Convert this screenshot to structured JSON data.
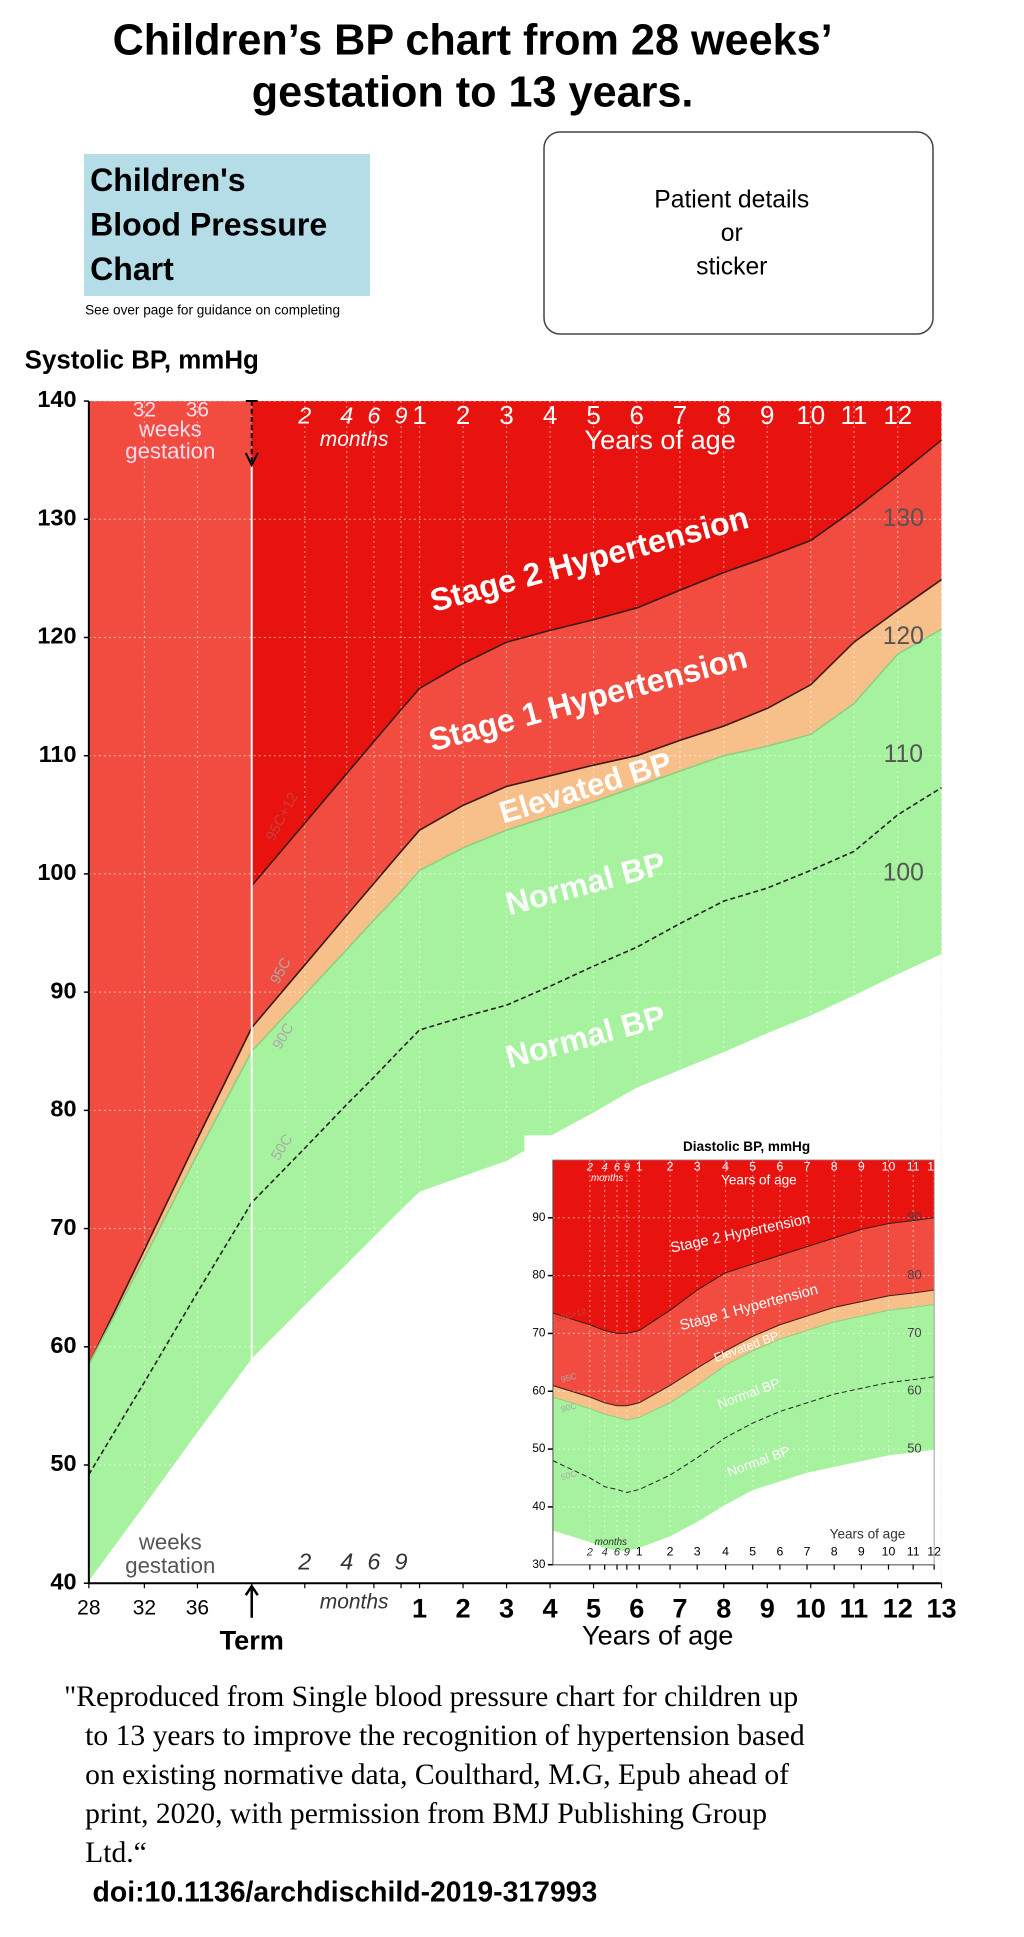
{
  "page": {
    "title_lines": [
      "Children’s BP chart from 28 weeks’",
      "gestation to 13 years."
    ],
    "logo_lines": [
      "Children's",
      "Blood Pressure",
      "Chart"
    ],
    "guidance": "See over page for guidance on completing",
    "patient_lines": [
      "Patient details",
      "or",
      "sticker"
    ],
    "citation_lines": [
      "\"Reproduced from Single blood pressure chart for children up",
      "to 13 years to improve the recognition of hypertension based",
      "on existing normative data, Coulthard, M.G, Epub ahead of",
      "print, 2020, with permission from BMJ Publishing Group",
      "Ltd.“"
    ],
    "doi": "doi:10.1136/archdischild-2019-317993"
  },
  "chart_data": [
    {
      "type": "area",
      "y_label": "Systolic BP, mmHg",
      "categories": [
        "28",
        "32",
        "36",
        "Term",
        "2",
        "4",
        "6",
        "9",
        "1",
        "2",
        "3",
        "4",
        "5",
        "6",
        "7",
        "8",
        "9",
        "10",
        "11",
        "12",
        "13"
      ],
      "ylim": [
        40,
        140
      ],
      "yticks": [
        40,
        50,
        60,
        70,
        80,
        90,
        100,
        110,
        120,
        130,
        140
      ],
      "inner_yticks": [
        100,
        110,
        120,
        130
      ],
      "grid": true,
      "background": "#f24c40",
      "top_color": "#e8120f",
      "series": [
        {
          "name": "95C+12",
          "color": "#3b1a14",
          "values": [
            null,
            null,
            null,
            99,
            104.3,
            108.5,
            111.2,
            113.9,
            115.7,
            117.8,
            119.6,
            120.6,
            121.5,
            122.5,
            124,
            125.5,
            126.8,
            128.2,
            130.8,
            133.7,
            136.7
          ]
        },
        {
          "name": "95C",
          "color": "#3b1a14",
          "fill": "#f7c08a",
          "values": [
            58.5,
            68.2,
            77.6,
            87,
            92.3,
            96.5,
            99.2,
            101.9,
            103.7,
            105.8,
            107.4,
            108.3,
            109.2,
            110,
            111.3,
            112.5,
            114,
            116,
            119.6,
            122.3,
            124.9
          ]
        },
        {
          "name": "90C",
          "color": "#8fcf80",
          "fill": "#a6f29e",
          "values": [
            58.5,
            67.5,
            76.3,
            85,
            89.8,
            93.6,
            96.1,
            98.5,
            100.3,
            102.2,
            103.7,
            104.9,
            106.1,
            107.4,
            108.7,
            110,
            110.8,
            111.8,
            114.4,
            118.6,
            120.7
          ]
        },
        {
          "name": "50C",
          "color": "#222222",
          "dash": true,
          "values": [
            49.2,
            57,
            64.6,
            72.2,
            76.8,
            80.5,
            82.8,
            85.2,
            86.8,
            87.9,
            88.9,
            90.5,
            92.2,
            93.8,
            95.8,
            97.7,
            98.8,
            100.3,
            101.9,
            105,
            107.3
          ]
        },
        {
          "color": "#a6f29e",
          "fill": "#ffffff",
          "values": [
            40.3,
            46.7,
            52.9,
            59.1,
            63.6,
            67.1,
            69.4,
            71.7,
            73.2,
            74.5,
            75.8,
            77.9,
            79.9,
            82,
            83.5,
            85,
            86.6,
            88.1,
            89.8,
            91.6,
            93.3
          ]
        }
      ],
      "annotations": [
        "weeks",
        "gestation",
        "months",
        "Years of age",
        "Stage 2 Hypertension",
        "Stage 1 Hypertension",
        "Elevated BP",
        "Normal BP",
        "Normal BP",
        "weeks",
        "gestation",
        "months",
        "Years of age"
      ]
    },
    {
      "type": "area",
      "title": "Diastolic BP, mmHg",
      "categories": [
        null,
        "2",
        "4",
        "6",
        "9",
        "1",
        "2",
        "3",
        "4",
        "5",
        "6",
        "7",
        "8",
        "9",
        "10",
        "11",
        "12"
      ],
      "ylim": [
        30,
        100
      ],
      "yticks": [
        30,
        40,
        50,
        60,
        70,
        80,
        90
      ],
      "inner_yticks": [
        50,
        60,
        70,
        80,
        90
      ],
      "grid": true,
      "background": "#f24c40",
      "top_color": "#e8120f",
      "series": [
        {
          "name": "95C+12",
          "color": "#3b1a14",
          "values": [
            73.5,
            71.5,
            70.5,
            70,
            70,
            70.5,
            74,
            77.5,
            80.5,
            82,
            83.5,
            85,
            86.5,
            88,
            89,
            89.5,
            90
          ]
        },
        {
          "name": "95C",
          "color": "#3b1a14",
          "fill": "#f7c08a",
          "values": [
            61,
            59,
            58,
            57.5,
            57.5,
            58,
            61,
            64,
            67,
            69.5,
            71.5,
            73,
            74.5,
            75.5,
            76.5,
            77,
            77.5
          ]
        },
        {
          "name": "90C",
          "color": "#8fcf80",
          "fill": "#a6f29e",
          "values": [
            59,
            57,
            56,
            55.5,
            55,
            55.5,
            58,
            61,
            64.5,
            67,
            69,
            70.5,
            72,
            73,
            74,
            74.5,
            75
          ]
        },
        {
          "name": "50C",
          "color": "#222222",
          "dash": true,
          "values": [
            48,
            45,
            43.5,
            43,
            42.5,
            43,
            45.5,
            48.5,
            52,
            54.5,
            56.5,
            58,
            59.5,
            60.5,
            61.5,
            62,
            62.5
          ]
        },
        {
          "color": "#a6f29e",
          "fill": "#ffffff",
          "values": [
            36,
            34,
            33,
            32.5,
            32.5,
            33,
            35,
            37.5,
            40.5,
            43,
            44.5,
            46,
            47,
            48,
            49,
            49.5,
            50
          ]
        }
      ],
      "annotations": [
        "months",
        "Years of age",
        "Stage 2 Hypertension",
        "Stage 1 Hypertension",
        "Elevated BP",
        "Normal BP",
        "Normal BP",
        "months",
        "Years of age"
      ]
    }
  ]
}
